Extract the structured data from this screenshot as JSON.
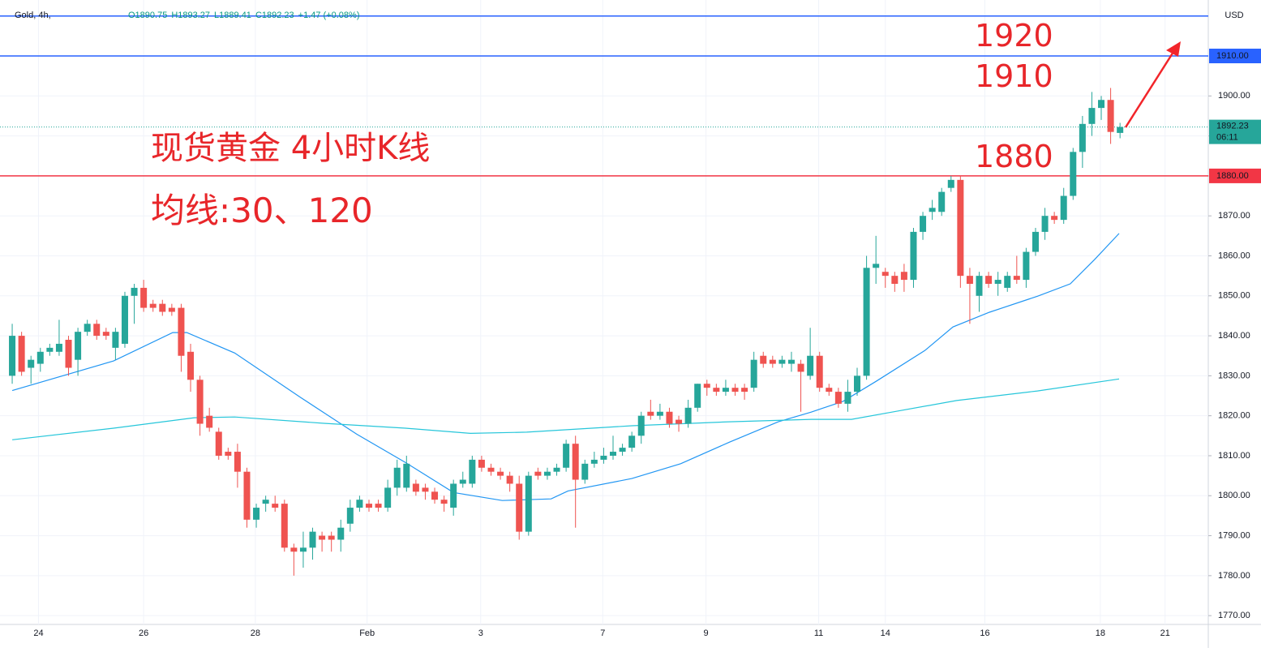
{
  "chart_data": {
    "type": "candlestick",
    "header": {
      "symbol": "Gold, 4h,",
      "values": [
        "O1890.75",
        "H1893.27",
        "L1889.41",
        "C1892.23",
        "+1.47 (+0.08%)"
      ]
    },
    "currency": "USD",
    "annotations": [
      "现货黄金 4小时K线",
      "均线:30、120",
      "1920",
      "1910",
      "1880"
    ],
    "ylim": [
      1767.8,
      1924
    ],
    "xlim": [
      -1.3,
      127.4
    ],
    "yticks": [
      {
        "value": 1770,
        "label": "1770.00"
      },
      {
        "value": 1780,
        "label": "1780.00"
      },
      {
        "value": 1790,
        "label": "1790.00"
      },
      {
        "value": 1800,
        "label": "1800.00"
      },
      {
        "value": 1810,
        "label": "1810.00"
      },
      {
        "value": 1820,
        "label": "1820.00"
      },
      {
        "value": 1830,
        "label": "1830.00"
      },
      {
        "value": 1840,
        "label": "1840.00"
      },
      {
        "value": 1850,
        "label": "1850.00"
      },
      {
        "value": 1860,
        "label": "1860.00"
      },
      {
        "value": 1870,
        "label": "1870.00"
      },
      {
        "value": 1880,
        "label": "1880.00"
      },
      {
        "value": 1890,
        "label": "1890.00"
      },
      {
        "value": 1900,
        "label": "1900.00"
      }
    ],
    "xticks": [
      {
        "value": 2.8,
        "label": "24"
      },
      {
        "value": 14,
        "label": "26"
      },
      {
        "value": 25.9,
        "label": "28"
      },
      {
        "value": 37.8,
        "label": "Feb"
      },
      {
        "value": 49.9,
        "label": "3"
      },
      {
        "value": 62.9,
        "label": "7"
      },
      {
        "value": 73.9,
        "label": "9"
      },
      {
        "value": 85.9,
        "label": "11"
      },
      {
        "value": 93,
        "label": "14"
      },
      {
        "value": 103.6,
        "label": "16"
      },
      {
        "value": 115.9,
        "label": "18"
      },
      {
        "value": 122.8,
        "label": "21"
      }
    ],
    "grid": true,
    "up_color": "#26a69a",
    "down_color": "#ef5350",
    "hlines": [
      {
        "value": 1920,
        "color": "#2962ff"
      },
      {
        "value": 1910,
        "color": "#2962ff",
        "label": "1910.00"
      },
      {
        "value": 1880,
        "color": "#f23645",
        "label": "1880.00"
      }
    ],
    "last_price": {
      "value": 1892.23,
      "label": "1892.23",
      "countdown": "06:11"
    },
    "ohlc": [
      [
        1830,
        1843,
        1828,
        1840
      ],
      [
        1840,
        1841,
        1830,
        1831
      ],
      [
        1832,
        1835,
        1828,
        1834
      ],
      [
        1833,
        1837,
        1831,
        1836
      ],
      [
        1836,
        1838,
        1835,
        1837
      ],
      [
        1836,
        1844,
        1835,
        1838
      ],
      [
        1839,
        1840,
        1830,
        1832
      ],
      [
        1834,
        1842,
        1830,
        1841
      ],
      [
        1841,
        1844,
        1840,
        1843
      ],
      [
        1843,
        1844,
        1839,
        1840
      ],
      [
        1841,
        1842,
        1839,
        1840
      ],
      [
        1837,
        1842,
        1834,
        1841
      ],
      [
        1838,
        1851,
        1837,
        1850
      ],
      [
        1850,
        1853,
        1843,
        1852
      ],
      [
        1852,
        1854,
        1846,
        1847
      ],
      [
        1848,
        1849,
        1846,
        1847
      ],
      [
        1848,
        1849,
        1845,
        1846
      ],
      [
        1847,
        1848,
        1845,
        1846
      ],
      [
        1847,
        1848,
        1831,
        1835
      ],
      [
        1836,
        1838,
        1826,
        1829
      ],
      [
        1829,
        1830,
        1815,
        1818
      ],
      [
        1820,
        1822,
        1816,
        1817
      ],
      [
        1816,
        1817,
        1809,
        1810
      ],
      [
        1811,
        1812,
        1809,
        1810
      ],
      [
        1811,
        1813,
        1802,
        1806
      ],
      [
        1806,
        1807,
        1792,
        1794
      ],
      [
        1794,
        1798,
        1792,
        1797
      ],
      [
        1798,
        1800,
        1796,
        1799
      ],
      [
        1798,
        1800,
        1796,
        1797
      ],
      [
        1798,
        1799,
        1786,
        1787
      ],
      [
        1787,
        1788,
        1780,
        1786
      ],
      [
        1786,
        1791,
        1782,
        1787
      ],
      [
        1787,
        1792,
        1784,
        1791
      ],
      [
        1790,
        1791,
        1786,
        1789
      ],
      [
        1790,
        1791,
        1786,
        1789
      ],
      [
        1789,
        1794,
        1786,
        1792
      ],
      [
        1793,
        1799,
        1791,
        1797
      ],
      [
        1797,
        1800,
        1796,
        1799
      ],
      [
        1798,
        1799,
        1796,
        1797
      ],
      [
        1798,
        1799,
        1796,
        1797
      ],
      [
        1797,
        1804,
        1796,
        1802
      ],
      [
        1802,
        1809,
        1800,
        1807
      ],
      [
        1802,
        1810,
        1801,
        1808
      ],
      [
        1803,
        1804,
        1800,
        1801
      ],
      [
        1802,
        1803,
        1799,
        1801
      ],
      [
        1801,
        1802,
        1798,
        1799
      ],
      [
        1799,
        1800,
        1796,
        1798
      ],
      [
        1797,
        1804,
        1795,
        1803
      ],
      [
        1803,
        1806,
        1802,
        1804
      ],
      [
        1803,
        1810,
        1802,
        1809
      ],
      [
        1809,
        1810,
        1806,
        1807
      ],
      [
        1807,
        1808,
        1805,
        1806
      ],
      [
        1806,
        1807,
        1804,
        1805
      ],
      [
        1805,
        1806,
        1801,
        1803
      ],
      [
        1803,
        1805,
        1789,
        1791
      ],
      [
        1791,
        1806,
        1790,
        1805
      ],
      [
        1806,
        1807,
        1804,
        1805
      ],
      [
        1805,
        1807,
        1804,
        1806
      ],
      [
        1806,
        1808,
        1805,
        1807
      ],
      [
        1807,
        1814,
        1806,
        1813
      ],
      [
        1813,
        1815,
        1792,
        1804
      ],
      [
        1804,
        1809,
        1803,
        1808
      ],
      [
        1808,
        1811,
        1807,
        1809
      ],
      [
        1809,
        1812,
        1808,
        1810
      ],
      [
        1810,
        1815,
        1809,
        1811
      ],
      [
        1811,
        1813,
        1810,
        1812
      ],
      [
        1812,
        1816,
        1811,
        1815
      ],
      [
        1815,
        1821,
        1813,
        1820
      ],
      [
        1821,
        1824,
        1819,
        1820
      ],
      [
        1820,
        1823,
        1819,
        1821
      ],
      [
        1821,
        1822,
        1817,
        1818
      ],
      [
        1819,
        1820,
        1816,
        1818
      ],
      [
        1818,
        1824,
        1817,
        1822
      ],
      [
        1822,
        1828,
        1821,
        1828
      ],
      [
        1828,
        1829,
        1825,
        1827
      ],
      [
        1827,
        1828,
        1825,
        1826
      ],
      [
        1826,
        1829,
        1825,
        1827
      ],
      [
        1827,
        1828,
        1825,
        1826
      ],
      [
        1827,
        1828,
        1824,
        1826
      ],
      [
        1827,
        1836,
        1826,
        1834
      ],
      [
        1835,
        1836,
        1832,
        1833
      ],
      [
        1834,
        1835,
        1832,
        1833
      ],
      [
        1833,
        1835,
        1832,
        1834
      ],
      [
        1833,
        1836,
        1831,
        1834
      ],
      [
        1833,
        1834,
        1821,
        1831
      ],
      [
        1830,
        1842,
        1829,
        1835
      ],
      [
        1835,
        1836,
        1826,
        1827
      ],
      [
        1827,
        1828,
        1825,
        1826
      ],
      [
        1826,
        1827,
        1822,
        1823
      ],
      [
        1823,
        1829,
        1821,
        1826
      ],
      [
        1826,
        1832,
        1825,
        1830
      ],
      [
        1830,
        1860,
        1829,
        1857
      ],
      [
        1857,
        1865,
        1853,
        1858
      ],
      [
        1856,
        1857,
        1852,
        1855
      ],
      [
        1855,
        1856,
        1851,
        1853
      ],
      [
        1856,
        1858,
        1851,
        1854
      ],
      [
        1854,
        1867,
        1852,
        1866
      ],
      [
        1866,
        1871,
        1864,
        1870
      ],
      [
        1871,
        1874,
        1869,
        1872
      ],
      [
        1871,
        1877,
        1870,
        1876
      ],
      [
        1877,
        1880,
        1876,
        1879
      ],
      [
        1879,
        1880,
        1852,
        1855
      ],
      [
        1855,
        1857,
        1843,
        1853
      ],
      [
        1850,
        1856,
        1846,
        1855
      ],
      [
        1855,
        1856,
        1852,
        1853
      ],
      [
        1853,
        1856,
        1850,
        1854
      ],
      [
        1852,
        1856,
        1851,
        1855
      ],
      [
        1855,
        1860,
        1853,
        1854
      ],
      [
        1854,
        1862,
        1852,
        1861
      ],
      [
        1861,
        1867,
        1860,
        1866
      ],
      [
        1866,
        1872,
        1864,
        1870
      ],
      [
        1870,
        1871,
        1868,
        1869
      ],
      [
        1869,
        1877,
        1868,
        1875
      ],
      [
        1875,
        1887,
        1874,
        1886
      ],
      [
        1886,
        1895,
        1882,
        1893
      ],
      [
        1893,
        1901,
        1890,
        1897
      ],
      [
        1897,
        1900,
        1894,
        1899
      ],
      [
        1899,
        1902,
        1888,
        1891
      ],
      [
        1890.75,
        1893.27,
        1889.41,
        1892.23
      ]
    ],
    "series": [
      {
        "name": "MA30",
        "color": "#2196f3",
        "x": [
          0,
          10.8,
          17.1,
          18.6,
          23.7,
          30.7,
          36.7,
          41.9,
          47,
          52.2,
          57.4,
          59.2,
          66,
          71.2,
          76.4,
          81.6,
          85.1,
          88.5,
          92,
          97.2,
          100.2,
          104.1,
          109.2,
          112.7,
          115.3,
          117.9
        ],
        "values": [
          1826.3,
          1833.7,
          1840.8,
          1840.8,
          1835.7,
          1824.6,
          1815.4,
          1808.3,
          1800.8,
          1798.8,
          1799.2,
          1801.2,
          1804.3,
          1808,
          1813.4,
          1818.5,
          1820.9,
          1823.6,
          1828.6,
          1836.3,
          1842.2,
          1845.9,
          1849.9,
          1853,
          1859.1,
          1865.6
        ]
      },
      {
        "name": "MA120",
        "color": "#26c6da",
        "x": [
          0,
          10.8,
          19.4,
          23.7,
          33.2,
          41.9,
          48.8,
          54.8,
          66,
          76.4,
          85.1,
          89.4,
          93.7,
          100.6,
          109.2,
          117.9
        ],
        "values": [
          1814,
          1816.9,
          1819.5,
          1819.7,
          1818.1,
          1816.9,
          1815.6,
          1815.9,
          1817.5,
          1818.5,
          1819.1,
          1819.1,
          1820.9,
          1823.8,
          1826.2,
          1829.2
        ]
      }
    ]
  }
}
